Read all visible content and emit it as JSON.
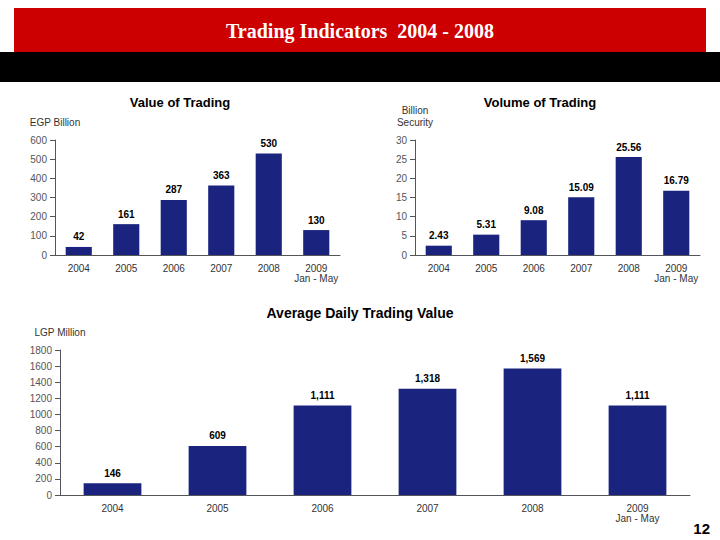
{
  "title": "Trading Indicators  2004 - 2008",
  "annotations": [
    "12"
  ],
  "chart_data": [
    {
      "type": "bar",
      "title": "Value of Trading",
      "ylabel": "EGP Billion",
      "categories": [
        "2004",
        "2005",
        "2006",
        "2007",
        "2008",
        "2009\nJan - May"
      ],
      "values": [
        42,
        161,
        287,
        363,
        530,
        130
      ],
      "color": "#1a237e",
      "ylim": [
        0,
        600
      ],
      "yticks": [
        0,
        100,
        200,
        300,
        400,
        500,
        600
      ],
      "grid": false,
      "data_labels": true
    },
    {
      "type": "bar",
      "title": "Volume of Trading",
      "ylabel": "Billion\nSecurity",
      "categories": [
        "2004",
        "2005",
        "2006",
        "2007",
        "2008",
        "2009\nJan - May"
      ],
      "values": [
        2.43,
        5.31,
        9.08,
        15.09,
        25.56,
        16.79
      ],
      "color": "#1a237e",
      "ylim": [
        0,
        30
      ],
      "yticks": [
        0,
        5,
        10,
        15,
        20,
        25,
        30
      ],
      "grid": false,
      "data_labels": true
    },
    {
      "type": "bar",
      "title": "Average Daily Trading Value",
      "ylabel": "LGP Million",
      "categories": [
        "2004",
        "2005",
        "2006",
        "2007",
        "2008",
        "2009\nJan - May"
      ],
      "values": [
        146,
        609,
        1111,
        1318,
        1569,
        1111
      ],
      "value_labels": [
        "146",
        "609",
        "1,111",
        "1,318",
        "1,569",
        "1,111"
      ],
      "color": "#1a237e",
      "ylim": [
        0,
        1800
      ],
      "yticks": [
        0,
        200,
        400,
        600,
        800,
        1000,
        1200,
        1400,
        1600,
        1800
      ],
      "grid": false,
      "data_labels": true
    }
  ]
}
